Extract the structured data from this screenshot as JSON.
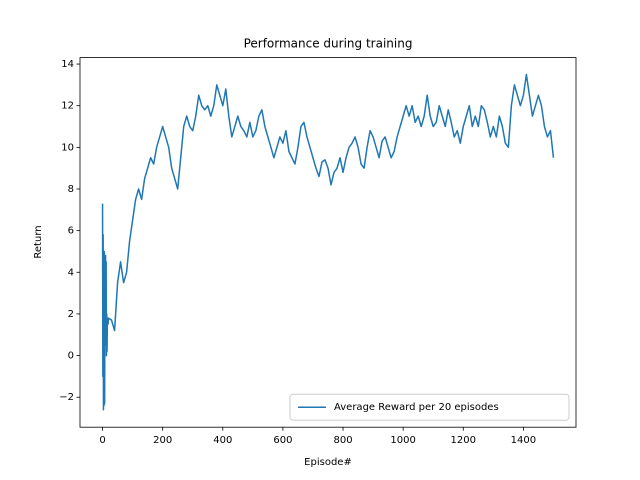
{
  "chart_data": {
    "type": "line",
    "title": "Performance during training",
    "xlabel": "Episode#",
    "ylabel": "Return",
    "x": [
      0,
      1,
      2,
      3,
      4,
      5,
      6,
      7,
      8,
      9,
      10,
      11,
      12,
      13,
      14,
      15,
      16,
      18,
      20,
      30,
      40,
      50,
      60,
      70,
      80,
      90,
      100,
      110,
      120,
      130,
      140,
      150,
      160,
      170,
      180,
      190,
      200,
      210,
      220,
      230,
      240,
      250,
      260,
      270,
      280,
      290,
      300,
      310,
      320,
      330,
      340,
      350,
      360,
      370,
      380,
      390,
      400,
      410,
      420,
      430,
      440,
      450,
      460,
      470,
      480,
      490,
      500,
      510,
      520,
      530,
      540,
      550,
      560,
      570,
      580,
      590,
      600,
      610,
      620,
      630,
      640,
      650,
      660,
      670,
      680,
      690,
      700,
      710,
      720,
      730,
      740,
      750,
      760,
      770,
      780,
      790,
      800,
      810,
      820,
      830,
      840,
      850,
      860,
      870,
      880,
      890,
      900,
      910,
      920,
      930,
      940,
      950,
      960,
      970,
      980,
      990,
      1000,
      1010,
      1020,
      1030,
      1040,
      1050,
      1060,
      1070,
      1080,
      1090,
      1100,
      1110,
      1120,
      1130,
      1140,
      1150,
      1160,
      1170,
      1180,
      1190,
      1200,
      1210,
      1220,
      1230,
      1240,
      1250,
      1260,
      1270,
      1280,
      1290,
      1300,
      1310,
      1320,
      1330,
      1340,
      1350,
      1360,
      1370,
      1380,
      1390,
      1400,
      1410,
      1420,
      1430,
      1440,
      1450,
      1460,
      1470,
      1480,
      1490,
      1500
    ],
    "series": [
      {
        "name": "Average Reward per 20 episodes",
        "color": "#1f77b4",
        "values": [
          7.3,
          -1,
          5.8,
          -2.6,
          3,
          -2.4,
          5,
          -2.3,
          4.5,
          0.5,
          4.8,
          1,
          4.5,
          0,
          2,
          0.2,
          1.8,
          1.5,
          1.8,
          1.7,
          1.2,
          3.5,
          4.5,
          3.5,
          4,
          5.5,
          6.5,
          7.5,
          8,
          7.5,
          8.5,
          9,
          9.5,
          9.2,
          10,
          10.5,
          11,
          10.5,
          10,
          9,
          8.5,
          8,
          9.5,
          11,
          11.5,
          11,
          10.8,
          11.5,
          12.5,
          12,
          11.8,
          12,
          11.5,
          12,
          13,
          12.5,
          12,
          12.8,
          11.5,
          10.5,
          11,
          11.5,
          11,
          10.8,
          10.5,
          11.2,
          10.5,
          10.8,
          11.5,
          11.8,
          11,
          10.5,
          10,
          9.5,
          10,
          10.5,
          10.2,
          10.8,
          9.8,
          9.5,
          9.2,
          10,
          11,
          11.2,
          10.5,
          10,
          9.5,
          9,
          8.6,
          9.3,
          9.4,
          9,
          8.2,
          8.8,
          9,
          9.5,
          8.8,
          9.5,
          10,
          10.2,
          10.5,
          10,
          9.2,
          9,
          10,
          10.8,
          10.5,
          10,
          9.5,
          10.3,
          10.5,
          10,
          9.5,
          9.8,
          10.5,
          11,
          11.5,
          12,
          11.5,
          12,
          11.2,
          11.5,
          11,
          11.5,
          12.5,
          11.5,
          11,
          11.2,
          12,
          11.5,
          11,
          11.8,
          11.2,
          10.5,
          10.8,
          10.2,
          11,
          11.5,
          12,
          11,
          11.5,
          11,
          12,
          11.8,
          11.2,
          10.5,
          11,
          10.5,
          11.5,
          11,
          10.2,
          10,
          12,
          13,
          12.5,
          12,
          12.5,
          13.5,
          12.5,
          11.5,
          12,
          12.5,
          12,
          11,
          10.5,
          10.8,
          9.5
        ]
      }
    ],
    "xlim": [
      -75,
      1575
    ],
    "ylim": [
      -3.44,
      14.31
    ],
    "xticks": [
      0,
      200,
      400,
      600,
      800,
      1000,
      1200,
      1400
    ],
    "yticks": [
      {
        "value": -2,
        "label": "−2"
      },
      0,
      2,
      4,
      6,
      8,
      10,
      12,
      14
    ],
    "legend": "lower right"
  }
}
